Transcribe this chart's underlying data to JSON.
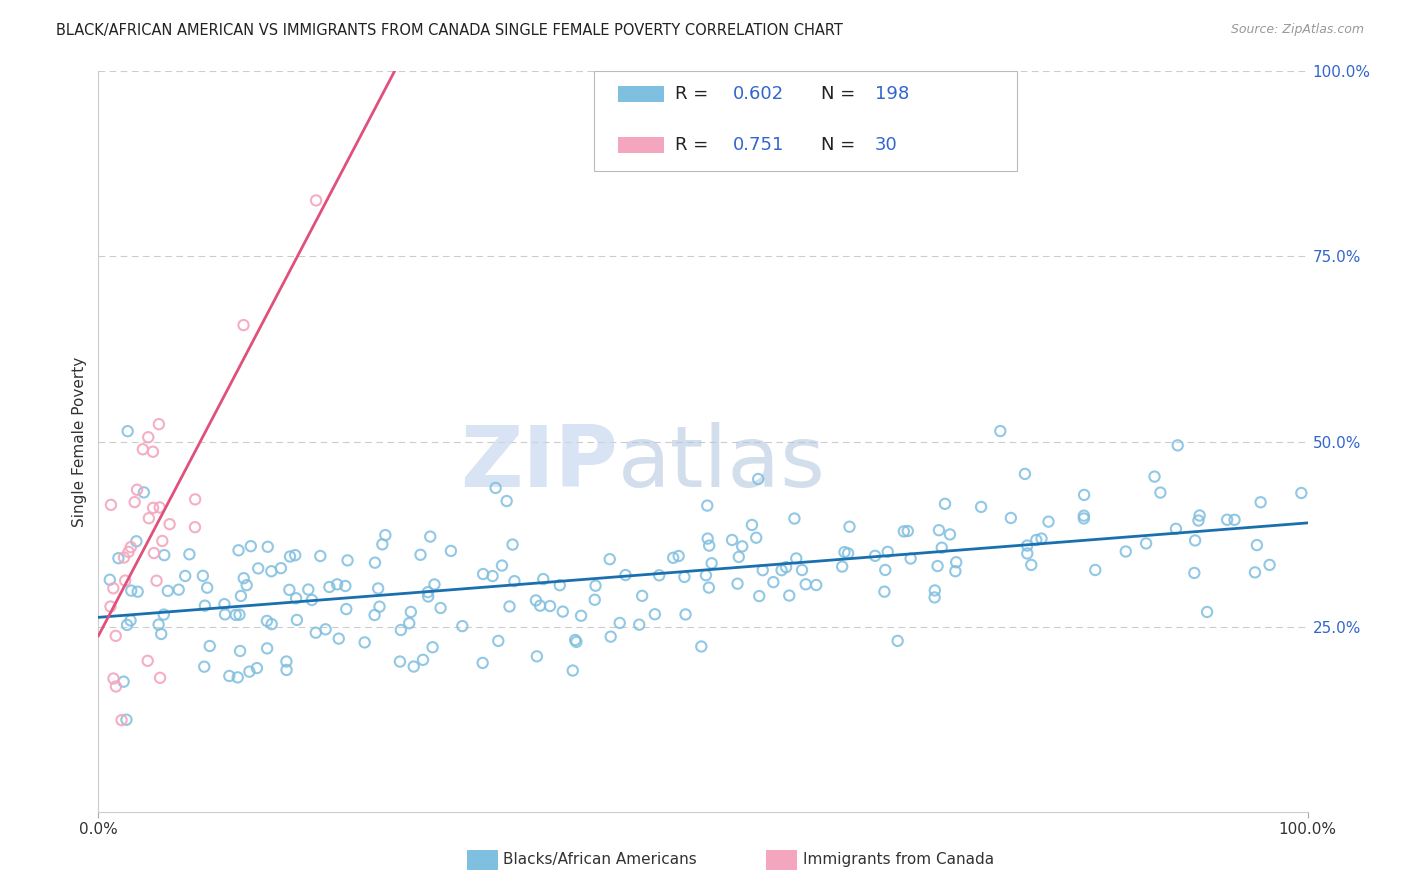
{
  "title": "BLACK/AFRICAN AMERICAN VS IMMIGRANTS FROM CANADA SINGLE FEMALE POVERTY CORRELATION CHART",
  "source": "Source: ZipAtlas.com",
  "ylabel": "Single Female Poverty",
  "watermark": "ZIPatlas",
  "blue_label": "Blacks/African Americans",
  "pink_label": "Immigrants from Canada",
  "blue_R": 0.602,
  "blue_N": 198,
  "pink_R": 0.751,
  "pink_N": 30,
  "blue_color": "#7fbfdf",
  "pink_color": "#f4a6be",
  "blue_line_color": "#1a6faf",
  "pink_line_color": "#e0507a",
  "legend_color": "#3366cc",
  "xlim": [
    0,
    1
  ],
  "ylim": [
    0,
    1
  ],
  "background_color": "#ffffff",
  "grid_color": "#cccccc"
}
